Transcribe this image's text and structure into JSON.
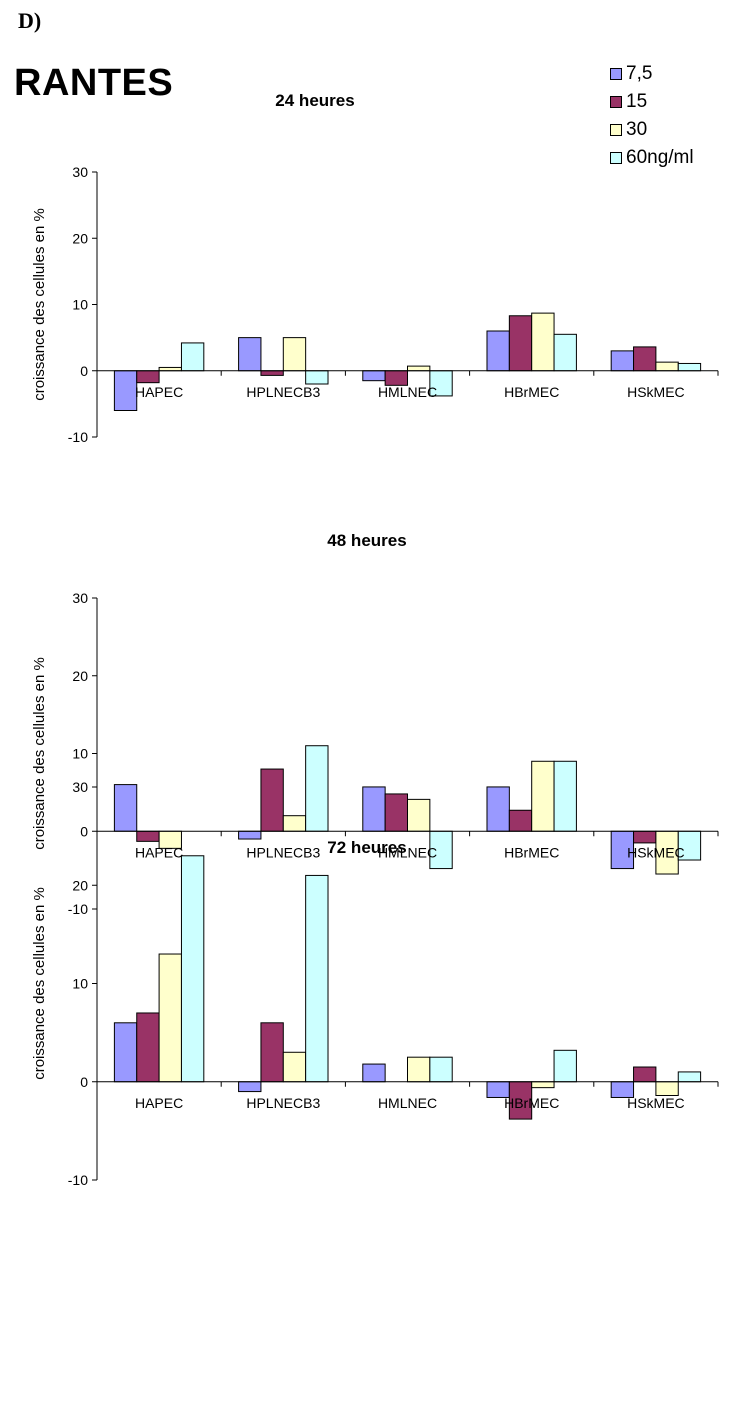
{
  "panel_label": "D)",
  "main_title": "RANTES",
  "legend": [
    {
      "label": "7,5",
      "color": "#9999ff"
    },
    {
      "label": "15",
      "color": "#993366"
    },
    {
      "label": "30",
      "color": "#ffffcc"
    },
    {
      "label": "60ng/ml",
      "color": "#ccffff"
    }
  ],
  "chart_data": [
    {
      "type": "bar",
      "title": "24 heures",
      "ylabel": "croissance des cellules en %",
      "xlabel": "",
      "ylim": [
        -10,
        30
      ],
      "yticks": [
        -10,
        0,
        10,
        20,
        30
      ],
      "categories": [
        "HAPEC",
        "HPLNECB3",
        "HMLNEC",
        "HBrMEC",
        "HSkMEC"
      ],
      "series": [
        {
          "name": "7,5",
          "values": [
            -6,
            5,
            -1.5,
            6,
            3
          ]
        },
        {
          "name": "15",
          "values": [
            -1.8,
            -0.7,
            -2.2,
            8.3,
            3.6
          ]
        },
        {
          "name": "30",
          "values": [
            0.5,
            5,
            0.7,
            8.7,
            1.3
          ]
        },
        {
          "name": "60ng/ml",
          "values": [
            4.2,
            -2,
            -3.8,
            5.5,
            1.1
          ]
        }
      ]
    },
    {
      "type": "bar",
      "title": "48 heures",
      "ylabel": "croissance des cellules en %",
      "xlabel": "",
      "ylim": [
        -10,
        30
      ],
      "yticks": [
        -10,
        0,
        10,
        20,
        30
      ],
      "categories": [
        "HAPEC",
        "HPLNECB3",
        "HMLNEC",
        "HBrMEC",
        "HSkMEC"
      ],
      "series": [
        {
          "name": "7,5",
          "values": [
            6,
            -1,
            5.7,
            5.7,
            -4.8
          ]
        },
        {
          "name": "15",
          "values": [
            -1.3,
            8,
            4.8,
            2.7,
            -1.5
          ]
        },
        {
          "name": "30",
          "values": [
            -2.2,
            2,
            4.1,
            9,
            -5.5
          ]
        },
        {
          "name": "60ng/ml",
          "values": [
            0,
            11,
            -4.8,
            9,
            -3.7
          ]
        }
      ]
    },
    {
      "type": "bar",
      "title": "72 heures",
      "ylabel": "croissance des cellules en %",
      "xlabel": "",
      "ylim": [
        -10,
        30
      ],
      "yticks": [
        -10,
        0,
        10,
        20,
        30
      ],
      "categories": [
        "HAPEC",
        "HPLNECB3",
        "HMLNEC",
        "HBrMEC",
        "HSkMEC"
      ],
      "series": [
        {
          "name": "7,5",
          "values": [
            6,
            -1,
            1.8,
            -1.6,
            -1.6
          ]
        },
        {
          "name": "15",
          "values": [
            7,
            6,
            0,
            -3.8,
            1.5
          ]
        },
        {
          "name": "30",
          "values": [
            13,
            3,
            2.5,
            -0.6,
            -1.4
          ]
        },
        {
          "name": "60ng/ml",
          "values": [
            23,
            21,
            2.5,
            3.2,
            1
          ]
        }
      ]
    }
  ]
}
